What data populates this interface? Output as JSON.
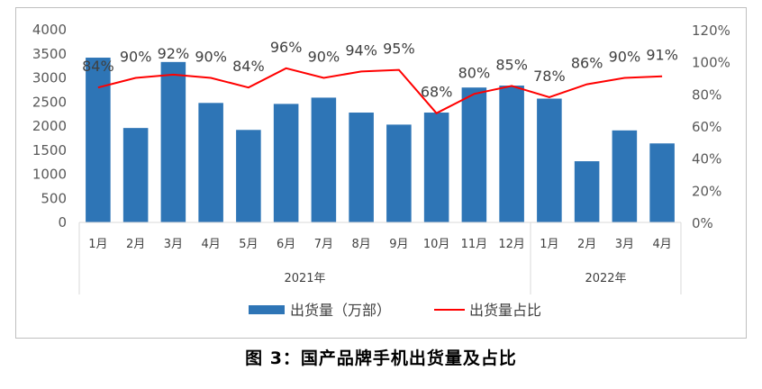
{
  "chart_data": {
    "type": "bar+line",
    "categories": [
      "1月",
      "2月",
      "3月",
      "4月",
      "5月",
      "6月",
      "7月",
      "8月",
      "9月",
      "10月",
      "11月",
      "12月",
      "1月",
      "2月",
      "3月",
      "4月"
    ],
    "year_groups": [
      {
        "label": "2021年",
        "count": 12
      },
      {
        "label": "2022年",
        "count": 4
      }
    ],
    "series": [
      {
        "name": "出货量（万部）",
        "type": "bar",
        "axis": "left",
        "color": "#2e75b6",
        "values": [
          3420,
          1960,
          3330,
          2480,
          1920,
          2460,
          2590,
          2280,
          2030,
          2280,
          2800,
          2840,
          2570,
          1270,
          1910,
          1640
        ]
      },
      {
        "name": "出货量占比",
        "type": "line",
        "axis": "right",
        "color": "#ff0000",
        "values": [
          84,
          90,
          92,
          90,
          84,
          96,
          90,
          94,
          95,
          68,
          80,
          85,
          78,
          86,
          90,
          91
        ],
        "labels": [
          "84%",
          "90%",
          "92%",
          "90%",
          "84%",
          "96%",
          "90%",
          "94%",
          "95%",
          "68%",
          "80%",
          "85%",
          "78%",
          "86%",
          "90%",
          "91%"
        ]
      }
    ],
    "y_left": {
      "min": 0,
      "max": 4000,
      "ticks": [
        "0",
        "500",
        "1000",
        "1500",
        "2000",
        "2500",
        "3000",
        "3500",
        "4000"
      ]
    },
    "y_right": {
      "min": 0,
      "max": 120,
      "ticks": [
        "0%",
        "20%",
        "40%",
        "60%",
        "80%",
        "100%",
        "120%"
      ]
    },
    "grid": false,
    "legend_position": "bottom"
  },
  "caption": "图 3：国产品牌手机出货量及占比"
}
